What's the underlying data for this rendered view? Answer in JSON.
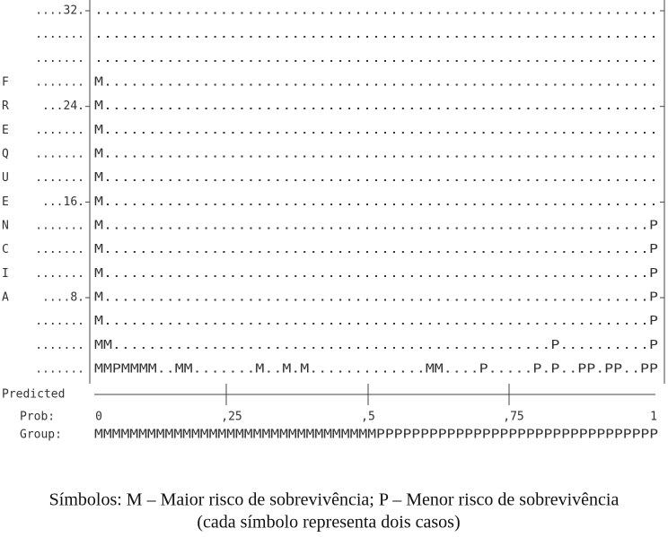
{
  "plot": {
    "rows": [
      {
        "gutter": "....32.",
        "plot": "..............................................................."
      },
      {
        "gutter": ".......",
        "plot": "..............................................................."
      },
      {
        "gutter": ".......",
        "plot": "..............................................................."
      },
      {
        "letter": "F",
        "gutter": ".......",
        "plot": "M.............................................................."
      },
      {
        "letter": "R",
        "gutter": "...24.",
        "plot": "M.............................................................."
      },
      {
        "letter": "E",
        "gutter": ".......",
        "plot": "M.............................................................."
      },
      {
        "letter": "Q",
        "gutter": ".......",
        "plot": "M.............................................................."
      },
      {
        "letter": "U",
        "gutter": ".......",
        "plot": "M.............................................................."
      },
      {
        "letter": "E",
        "gutter": "...16.",
        "plot": "M.............................................................."
      },
      {
        "letter": "N",
        "gutter": ".......",
        "plot": "M.............................................................P"
      },
      {
        "letter": "C",
        "gutter": ".......",
        "plot": "M.............................................................P"
      },
      {
        "letter": "I",
        "gutter": ".......",
        "plot": "M.............................................................P"
      },
      {
        "letter": "A",
        "gutter": "....8.",
        "plot": "M.............................................................P"
      },
      {
        "gutter": ".......",
        "plot": "M.............................................................P"
      },
      {
        "gutter": ".......",
        "plot": "MM.................................................P..........P"
      },
      {
        "gutter": ".......",
        "plot": "MMPMMMM..MM.......M..M.M.............MM....P.....P.P..PP.PP..PP"
      }
    ],
    "predicted_label": "Predicted",
    "prob_label": "Prob:",
    "prob_ticks": [
      "0",
      ",25",
      ",5",
      ",75",
      "1"
    ],
    "group_label": "Group:",
    "group": "MMMMMMMMMMMMMMMMMMMMMMMMMMMMMMMMPPPPPPPPPPPPPPPPPPPPPPPPPPPPPPPP"
  },
  "caption": {
    "line1": "Símbolos: M – Maior risco de sobrevivência; P – Menor risco de sobrevivência",
    "line2": "(cada símbolo representa dois casos)"
  }
}
